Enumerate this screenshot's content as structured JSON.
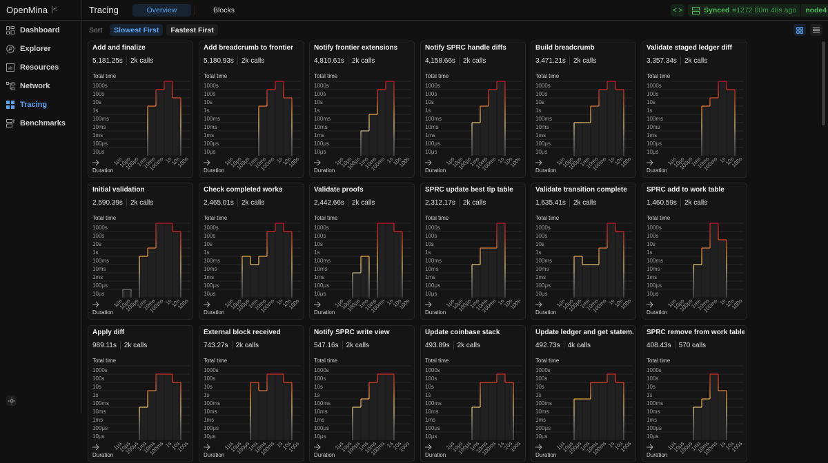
{
  "app": {
    "name": "OpenMina",
    "collapse_icon": "collapse-left-icon"
  },
  "sidebar": {
    "items": [
      {
        "label": "Dashboard",
        "icon": "dashboard-icon",
        "active": false
      },
      {
        "label": "Explorer",
        "icon": "compass-icon",
        "active": false
      },
      {
        "label": "Resources",
        "icon": "bar-chart-icon",
        "active": false
      },
      {
        "label": "Network",
        "icon": "network-icon",
        "active": false
      },
      {
        "label": "Tracing",
        "icon": "grid-icon",
        "active": true
      },
      {
        "label": "Benchmarks",
        "icon": "benchmark-icon",
        "active": false
      }
    ],
    "theme_icon": "sun-icon"
  },
  "header": {
    "title": "Tracing",
    "tabs": [
      {
        "label": "Overview",
        "active": true
      },
      {
        "label": "Blocks",
        "active": false
      }
    ],
    "status": {
      "label": "Synced",
      "block": "#1272 00m 48s ago",
      "node": "node4"
    }
  },
  "sort": {
    "label": "Sort",
    "options": [
      {
        "label": "Slowest First",
        "active": true
      },
      {
        "label": "Fastest First",
        "active": false
      }
    ],
    "view": "grid"
  },
  "colors": {
    "accent": "#5aa6f2",
    "synced": "#4dba59",
    "bar_top_high": "#c8102e",
    "bar_mid": "#e8b040",
    "bar_low": "#6a6a6a"
  },
  "chart_common": {
    "y_label": "Total time",
    "x_label": "Duration",
    "y_ticks": [
      "1000s",
      "100s",
      "10s",
      "1s",
      "100ms",
      "10ms",
      "1ms",
      "100μs",
      "10μs"
    ],
    "x_ticks": [
      "1μs",
      "10μs",
      "100μs",
      "1ms",
      "10ms",
      "100ms",
      "1s",
      "10s",
      "100s"
    ],
    "y_scale": "log",
    "y_unit": "s"
  },
  "chart_data": [
    {
      "type": "bar",
      "title": "Add and finalize",
      "total": "5,181.25s",
      "calls": "2k calls",
      "values": [
        null,
        null,
        null,
        null,
        1,
        100,
        1000,
        10,
        null
      ]
    },
    {
      "type": "bar",
      "title": "Add breadcrumb to frontier",
      "total": "5,180.93s",
      "calls": "2k calls",
      "values": [
        null,
        null,
        null,
        null,
        1,
        100,
        1000,
        10,
        null
      ]
    },
    {
      "type": "bar",
      "title": "Notify frontier extensions",
      "total": "4,810.61s",
      "calls": "2k calls",
      "values": [
        null,
        null,
        null,
        0.001,
        0.1,
        100,
        1000,
        null,
        null
      ]
    },
    {
      "type": "bar",
      "title": "Notify SPRC handle diffs",
      "total": "4,158.66s",
      "calls": "2k calls",
      "values": [
        null,
        null,
        null,
        0.01,
        1,
        100,
        1000,
        null,
        null
      ]
    },
    {
      "type": "bar",
      "title": "Build breadcrumb",
      "total": "3,471.21s",
      "calls": "2k calls",
      "values": [
        null,
        null,
        0.01,
        0.01,
        1,
        100,
        1000,
        100,
        null
      ]
    },
    {
      "type": "bar",
      "title": "Validate staged ledger diff",
      "total": "3,357.34s",
      "calls": "2k calls",
      "values": [
        null,
        null,
        null,
        null,
        1,
        10,
        1000,
        100,
        null
      ]
    },
    {
      "type": "bar",
      "title": "Initial validation",
      "total": "2,590.39s",
      "calls": "2k calls",
      "values": [
        null,
        1e-05,
        null,
        0.1,
        1,
        1000,
        1000,
        100,
        null
      ]
    },
    {
      "type": "bar",
      "title": "Check completed works",
      "total": "2,465.01s",
      "calls": "2k calls",
      "values": [
        null,
        null,
        0.1,
        0.01,
        0.1,
        100,
        1000,
        100,
        null
      ]
    },
    {
      "type": "bar",
      "title": "Validate proofs",
      "total": "2,442.66s",
      "calls": "2k calls",
      "values": [
        null,
        null,
        0.001,
        0.1,
        null,
        1000,
        1000,
        100,
        null
      ]
    },
    {
      "type": "bar",
      "title": "SPRC update best tip table",
      "total": "2,312.17s",
      "calls": "2k calls",
      "values": [
        null,
        null,
        null,
        0.01,
        1,
        1,
        1000,
        null,
        null
      ]
    },
    {
      "type": "bar",
      "title": "Validate transition complete",
      "total": "1,635.41s",
      "calls": "2k calls",
      "values": [
        null,
        null,
        0.1,
        0.01,
        0.01,
        1,
        1000,
        100,
        null
      ]
    },
    {
      "type": "bar",
      "title": "SPRC add to work table",
      "total": "1,460.59s",
      "calls": "2k calls",
      "values": [
        null,
        null,
        null,
        0.01,
        1,
        1000,
        10,
        null,
        null
      ]
    },
    {
      "type": "bar",
      "title": "Apply diff",
      "total": "989.11s",
      "calls": "2k calls",
      "values": [
        null,
        null,
        null,
        0.01,
        1,
        100,
        100,
        10,
        null
      ]
    },
    {
      "type": "bar",
      "title": "External block received",
      "total": "743.27s",
      "calls": "2k calls",
      "values": [
        null,
        null,
        null,
        10,
        1,
        100,
        100,
        10,
        null
      ]
    },
    {
      "type": "bar",
      "title": "Notify SPRC write view",
      "total": "547.16s",
      "calls": "2k calls",
      "values": [
        null,
        null,
        0.01,
        0.1,
        10,
        100,
        100,
        null,
        null
      ]
    },
    {
      "type": "bar",
      "title": "Update coinbase stack",
      "total": "493.89s",
      "calls": "2k calls",
      "values": [
        null,
        null,
        null,
        0.01,
        10,
        10,
        100,
        10,
        null
      ]
    },
    {
      "type": "bar",
      "title": "Update ledger and get statem...",
      "total": "492.73s",
      "calls": "4k calls",
      "values": [
        null,
        null,
        0.1,
        0.1,
        10,
        10,
        100,
        10,
        null
      ]
    },
    {
      "type": "bar",
      "title": "SPRC remove from work table",
      "total": "408.43s",
      "calls": "570 calls",
      "values": [
        null,
        null,
        null,
        0.01,
        0.1,
        100,
        1,
        null,
        null
      ]
    }
  ]
}
